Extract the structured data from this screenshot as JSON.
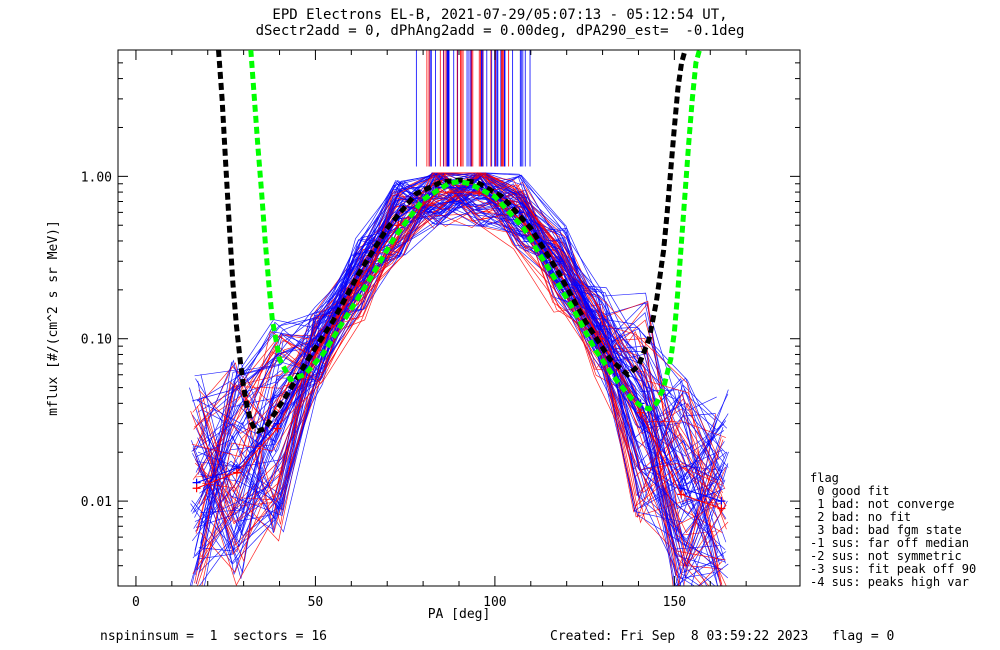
{
  "header": {
    "title_line1": "EPD Electrons EL-B, 2021-07-29/05:07:13 - 05:12:54 UT,",
    "title_line2": "dSectr2add = 0, dPhAng2add = 0.00deg, dPA290_est=  -0.1deg"
  },
  "footer": {
    "left": "nspininsum =  1  sectors = 16",
    "right": "Created: Fri Sep  8 03:59:22 2023   flag = 0"
  },
  "legend": {
    "title": "flag",
    "items": [
      " 0 good fit",
      " 1 bad: not converge",
      " 2 bad: no fit",
      " 3 bad: bad fgm state",
      "-1 sus: far off median",
      "-2 sus: not symmetric",
      "-3 sus: fit peak off 90",
      "-4 sus: peaks high var"
    ]
  },
  "colors": {
    "blue": "#0000ff",
    "red": "#ff0000",
    "black_fit": "#000000",
    "green_fit": "#00ff00"
  },
  "chart_data": {
    "type": "line",
    "xlabel": "PA [deg]",
    "ylabel": "mflux [#/(cm^2 s sr MeV)]",
    "xlim": [
      -5,
      185
    ],
    "ylim": [
      0.003,
      6.0
    ],
    "yscale": "log",
    "x_ticks": [
      0,
      50,
      100,
      150
    ],
    "x_tick_labels": [
      "0",
      "50",
      "100",
      "150"
    ],
    "y_ticks": [
      0.01,
      0.1,
      1.0
    ],
    "y_tick_labels": [
      "0.01",
      "0.10",
      "1.00"
    ],
    "series": [
      {
        "color": "#0000ff",
        "style": "line+cross",
        "x": [
          16.9,
          28.1,
          39.4,
          50.6,
          61.9,
          73.1,
          84.4,
          95.6,
          106.9,
          118.1,
          129.4,
          140.6,
          151.9,
          163.1
        ],
        "values": [
          0.013,
          0.016,
          0.03,
          0.09,
          0.25,
          0.55,
          0.85,
          0.85,
          0.6,
          0.3,
          0.12,
          0.04,
          0.012,
          0.01
        ]
      },
      {
        "color": "#ff0000",
        "style": "line+cross",
        "x": [
          16.9,
          28.1,
          39.4,
          50.6,
          61.9,
          73.1,
          84.4,
          95.6,
          106.9,
          118.1,
          129.4,
          140.6,
          151.9,
          163.1
        ],
        "values": [
          0.012,
          0.015,
          0.028,
          0.085,
          0.22,
          0.5,
          0.8,
          0.8,
          0.55,
          0.25,
          0.1,
          0.035,
          0.011,
          0.009
        ]
      },
      {
        "color": "#000000",
        "style": "dashed",
        "x": [
          23,
          24,
          25,
          26,
          27,
          28,
          29,
          30,
          31,
          32,
          33,
          34,
          36,
          38,
          42,
          48,
          55,
          62,
          70,
          78,
          85,
          90,
          95,
          102,
          110,
          118,
          125,
          132,
          137,
          140,
          143,
          145,
          147,
          148,
          149,
          150,
          151,
          152,
          153
        ],
        "values": [
          6.0,
          3.0,
          1.2,
          0.5,
          0.22,
          0.12,
          0.075,
          0.05,
          0.038,
          0.031,
          0.028,
          0.027,
          0.028,
          0.033,
          0.045,
          0.075,
          0.13,
          0.25,
          0.48,
          0.78,
          0.92,
          0.95,
          0.92,
          0.75,
          0.48,
          0.25,
          0.13,
          0.075,
          0.06,
          0.068,
          0.1,
          0.17,
          0.35,
          0.6,
          1.1,
          2.0,
          3.5,
          5.0,
          6.0
        ]
      },
      {
        "color": "#00ff00",
        "style": "dashed",
        "x": [
          32,
          33,
          34,
          35,
          36,
          37,
          38,
          40,
          43,
          47,
          52,
          58,
          65,
          72,
          80,
          87,
          90,
          93,
          100,
          108,
          115,
          122,
          128,
          134,
          138,
          141,
          143,
          145,
          147,
          149,
          150,
          151,
          152,
          153,
          154,
          155,
          156,
          157
        ],
        "values": [
          6.0,
          3.0,
          1.5,
          0.8,
          0.4,
          0.22,
          0.13,
          0.075,
          0.056,
          0.06,
          0.08,
          0.13,
          0.23,
          0.42,
          0.72,
          0.9,
          0.93,
          0.9,
          0.75,
          0.48,
          0.27,
          0.15,
          0.085,
          0.055,
          0.043,
          0.038,
          0.037,
          0.04,
          0.05,
          0.075,
          0.11,
          0.2,
          0.4,
          0.8,
          1.6,
          3.0,
          5.0,
          6.0
        ]
      }
    ]
  }
}
